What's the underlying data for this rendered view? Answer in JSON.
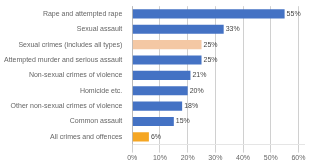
{
  "chart_data": {
    "type": "bar",
    "orientation": "horizontal",
    "categories": [
      "All crimes and offences",
      "Common assault",
      "Other non-sexual crimes of violence",
      "Homicide etc.",
      "Non-sexual crimes of violence",
      "Attempted murder and serious assault",
      "Sexual crimes (includes all types)",
      "Sexual assault",
      "Rape and attempted rape"
    ],
    "values": [
      6,
      15,
      18,
      20,
      21,
      25,
      25,
      33,
      55
    ],
    "value_labels": [
      "6%",
      "15%",
      "18%",
      "20%",
      "21%",
      "25%",
      "25%",
      "33%",
      "55%"
    ],
    "colors": [
      "#f5a623",
      "#4472c4",
      "#4472c4",
      "#4472c4",
      "#4472c4",
      "#4472c4",
      "#f4c8a4",
      "#4472c4",
      "#4472c4"
    ],
    "xlim": [
      0,
      62
    ],
    "xticks": [
      {
        "value": 0,
        "label": "0%"
      },
      {
        "value": 10,
        "label": "10%"
      },
      {
        "value": 20,
        "label": "20%"
      },
      {
        "value": 30,
        "label": "30%"
      },
      {
        "value": 40,
        "label": "40%"
      },
      {
        "value": 50,
        "label": "50%"
      },
      {
        "value": 60,
        "label": "60%"
      }
    ],
    "grid": true,
    "data_labels": true
  }
}
